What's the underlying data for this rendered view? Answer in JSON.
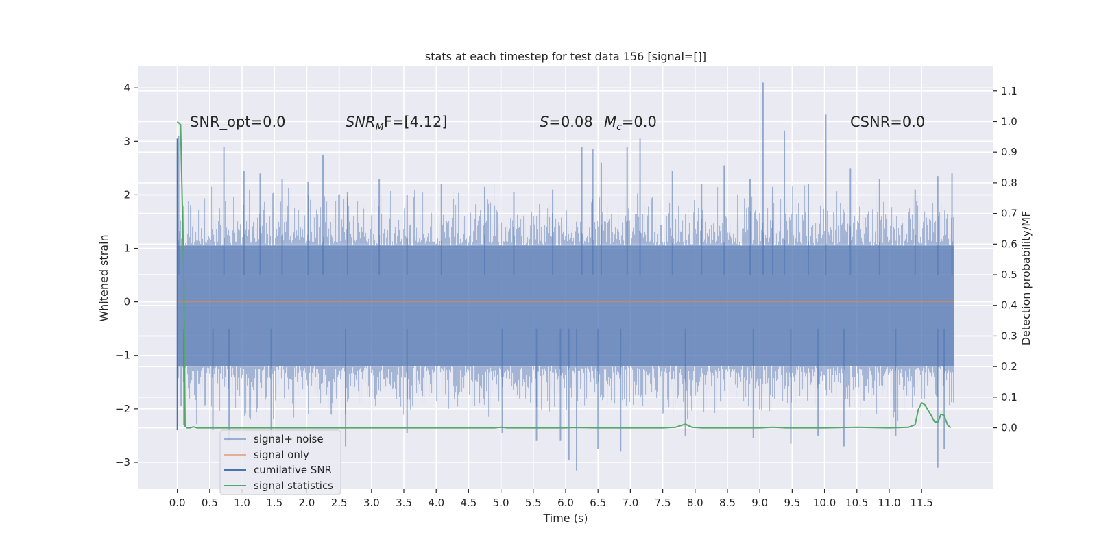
{
  "chart_data": {
    "type": "line",
    "title": "stats at each timestep for test data 156 [signal=[]]",
    "xlabel": "Time (s)",
    "ylabel_left": "Whitened strain",
    "ylabel_right": "Detection probability/MF",
    "xlim": [
      -0.6,
      12.6
    ],
    "ylim_left": [
      -3.5,
      4.4
    ],
    "ylim_right": [
      -0.2,
      1.18
    ],
    "x_ticks": [
      "0.0",
      "0.5",
      "1.0",
      "1.5",
      "2.0",
      "2.5",
      "3.0",
      "3.5",
      "4.0",
      "4.5",
      "5.0",
      "5.5",
      "6.0",
      "6.5",
      "7.0",
      "7.5",
      "8.0",
      "8.5",
      "9.0",
      "9.5",
      "10.0",
      "10.5",
      "11.0",
      "11.5"
    ],
    "y_ticks_left": [
      "−3",
      "−2",
      "−1",
      "0",
      "1",
      "2",
      "3",
      "4"
    ],
    "y_ticks_right": [
      "0.0",
      "0.1",
      "0.2",
      "0.3",
      "0.4",
      "0.5",
      "0.6",
      "0.7",
      "0.8",
      "0.9",
      "1.0",
      "1.1"
    ],
    "annotations": {
      "snr_opt": "SNR_opt=0.0",
      "snr_mf_main": "SNR",
      "snr_mf_sub": "M",
      "snr_mf_rest": "F=[4.12]",
      "s_label": "S",
      "s_value": "=0.08",
      "mc_main": "M",
      "mc_sub": "c",
      "mc_value": "=0.0",
      "csnr": "CSNR=0.0"
    },
    "legend_position": "lower-left",
    "series": [
      {
        "name": "signal+ noise",
        "color": "#4c72b0",
        "axis": "left",
        "band": {
          "x_start": 0.0,
          "x_end": 12.0,
          "core_low": -1.2,
          "core_high": 1.05
        },
        "peaks_high": [
          [
            0.02,
            3.1
          ],
          [
            0.72,
            2.9
          ],
          [
            1.03,
            2.45
          ],
          [
            1.28,
            2.4
          ],
          [
            1.62,
            2.3
          ],
          [
            2.02,
            2.25
          ],
          [
            2.25,
            2.75
          ],
          [
            2.63,
            2.05
          ],
          [
            3.12,
            2.3
          ],
          [
            3.55,
            2.0
          ],
          [
            4.08,
            2.2
          ],
          [
            4.75,
            2.15
          ],
          [
            5.2,
            2.05
          ],
          [
            5.8,
            2.1
          ],
          [
            6.25,
            2.9
          ],
          [
            6.42,
            2.85
          ],
          [
            6.55,
            2.6
          ],
          [
            6.95,
            2.9
          ],
          [
            7.15,
            3.05
          ],
          [
            7.65,
            2.45
          ],
          [
            8.1,
            2.2
          ],
          [
            8.45,
            2.55
          ],
          [
            8.85,
            2.3
          ],
          [
            9.05,
            4.1
          ],
          [
            9.2,
            2.15
          ],
          [
            9.38,
            3.2
          ],
          [
            9.75,
            2.2
          ],
          [
            10.02,
            3.5
          ],
          [
            10.4,
            2.5
          ],
          [
            10.85,
            2.3
          ],
          [
            11.4,
            2.1
          ],
          [
            11.75,
            2.35
          ],
          [
            11.97,
            2.4
          ]
        ],
        "peaks_low": [
          [
            0.1,
            -2.3
          ],
          [
            0.55,
            -2.4
          ],
          [
            0.8,
            -2.6
          ],
          [
            1.45,
            -2.5
          ],
          [
            2.6,
            -2.7
          ],
          [
            3.55,
            -2.45
          ],
          [
            5.02,
            -2.45
          ],
          [
            5.55,
            -2.6
          ],
          [
            5.92,
            -2.6
          ],
          [
            6.05,
            -2.95
          ],
          [
            6.17,
            -3.15
          ],
          [
            6.5,
            -2.75
          ],
          [
            6.85,
            -2.8
          ],
          [
            7.85,
            -2.5
          ],
          [
            8.9,
            -2.55
          ],
          [
            9.48,
            -2.65
          ],
          [
            9.9,
            -2.5
          ],
          [
            10.3,
            -2.7
          ],
          [
            11.1,
            -2.5
          ],
          [
            11.75,
            -3.1
          ],
          [
            11.85,
            -2.75
          ]
        ]
      },
      {
        "name": "signal only",
        "color": "#dd8452",
        "axis": "left",
        "x": [
          0.0,
          12.0
        ],
        "y": [
          0.0,
          0.0
        ]
      },
      {
        "name": "cumilative SNR",
        "color": "#4c72b0",
        "axis": "left",
        "x": [
          0.0,
          0.0
        ],
        "y": [
          -2.4,
          3.05
        ]
      },
      {
        "name": "signal statistics",
        "color": "#55a868",
        "axis": "right",
        "x": [
          0.0,
          0.05,
          0.1,
          0.12,
          0.15,
          0.2,
          0.25,
          0.3,
          1.0,
          2.0,
          3.0,
          4.0,
          4.9,
          5.0,
          5.1,
          6.0,
          6.1,
          6.5,
          7.0,
          7.5,
          7.7,
          7.85,
          7.95,
          8.1,
          9.0,
          9.2,
          9.4,
          10.0,
          10.5,
          11.0,
          11.3,
          11.4,
          11.45,
          11.5,
          11.55,
          11.65,
          11.7,
          11.75,
          11.8,
          11.85,
          11.9,
          11.95
        ],
        "y": [
          1.0,
          0.99,
          0.5,
          0.005,
          0.0,
          0.0,
          0.003,
          0.0,
          0.0,
          0.0,
          0.0,
          0.0,
          0.0,
          0.002,
          0.0,
          0.0,
          0.001,
          0.0,
          0.0,
          0.0,
          0.002,
          0.012,
          0.002,
          0.0,
          0.0,
          0.002,
          0.0,
          0.0,
          0.002,
          0.0,
          0.002,
          0.01,
          0.06,
          0.082,
          0.075,
          0.04,
          0.02,
          0.018,
          0.045,
          0.04,
          0.01,
          0.0
        ]
      }
    ]
  }
}
